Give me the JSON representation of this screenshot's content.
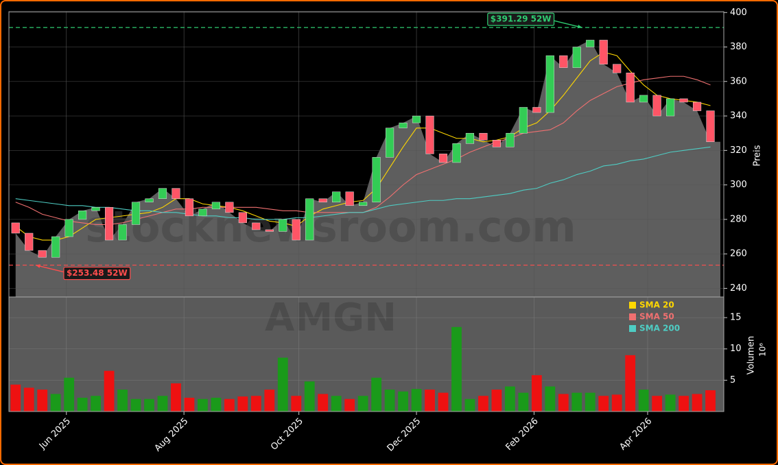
{
  "chart_data": [
    {
      "type": "candlestick",
      "x": [
        0,
        1,
        2,
        3,
        4,
        5,
        6,
        7,
        8,
        9,
        10,
        11,
        12,
        13,
        14,
        15,
        16,
        17,
        18,
        19,
        20,
        21,
        22,
        23,
        24,
        25,
        26,
        27,
        28,
        29,
        30,
        31,
        32,
        33,
        34,
        35,
        36,
        37,
        38,
        39,
        40,
        41,
        42,
        43,
        44,
        45,
        46,
        47,
        48,
        49,
        50,
        51,
        52
      ],
      "open": [
        278,
        272,
        262,
        258,
        270,
        280,
        285,
        287,
        268,
        277,
        290,
        292,
        298,
        292,
        282,
        286,
        290,
        284,
        278,
        274,
        273,
        280,
        268,
        292,
        290,
        296,
        288,
        290,
        316,
        333,
        336,
        340,
        318,
        313,
        324,
        330,
        326,
        322,
        330,
        345,
        342,
        375,
        368,
        380,
        384,
        370,
        365,
        348,
        352,
        340,
        350,
        348,
        343
      ],
      "close": [
        272,
        262,
        258,
        270,
        280,
        285,
        287,
        268,
        277,
        290,
        292,
        298,
        292,
        282,
        286,
        290,
        284,
        278,
        274,
        273,
        280,
        268,
        292,
        290,
        296,
        288,
        290,
        316,
        333,
        336,
        340,
        318,
        313,
        324,
        330,
        326,
        322,
        330,
        345,
        342,
        375,
        368,
        380,
        384,
        370,
        365,
        348,
        352,
        340,
        350,
        348,
        343,
        325
      ],
      "up_color": "#33cc55",
      "down_color": "#ff5566",
      "area_color": "#5e5e5e",
      "series": [
        {
          "name": "SMA 20",
          "color": "#ffd700",
          "values": [
            276,
            270,
            268,
            268,
            270,
            275,
            280,
            281,
            282,
            283,
            284,
            287,
            292,
            292,
            289,
            288,
            287,
            285,
            282,
            279,
            278,
            276,
            282,
            286,
            288,
            290,
            291,
            298,
            310,
            322,
            333,
            333,
            330,
            327,
            327,
            325,
            326,
            328,
            333,
            336,
            343,
            352,
            362,
            372,
            377,
            375,
            366,
            358,
            352,
            350,
            349,
            348,
            346
          ]
        },
        {
          "name": "SMA 50",
          "color": "#f07070",
          "values": [
            290,
            287,
            283,
            281,
            279,
            278,
            277,
            277,
            278,
            280,
            282,
            284,
            286,
            286,
            287,
            287,
            287,
            287,
            287,
            286,
            285,
            285,
            284,
            284,
            284,
            284,
            284,
            287,
            293,
            300,
            306,
            309,
            312,
            315,
            319,
            322,
            325,
            327,
            330,
            331,
            332,
            336,
            343,
            349,
            353,
            357,
            359,
            361,
            362,
            363,
            363,
            361,
            358
          ]
        },
        {
          "name": "SMA 200",
          "color": "#4ecdc4",
          "values": [
            292,
            291,
            290,
            289,
            288,
            288,
            287,
            287,
            286,
            285,
            285,
            284,
            284,
            283,
            282,
            282,
            281,
            281,
            280,
            280,
            280,
            281,
            281,
            282,
            283,
            284,
            284,
            286,
            288,
            289,
            290,
            291,
            291,
            292,
            292,
            293,
            294,
            295,
            297,
            298,
            301,
            303,
            306,
            308,
            311,
            312,
            314,
            315,
            317,
            319,
            320,
            321,
            322
          ]
        }
      ],
      "annotations": [
        {
          "label": "$391.29 52W",
          "value": 391.29,
          "x": 42.4,
          "color": "#2ecc71"
        },
        {
          "label": "$253.48 52W",
          "value": 253.48,
          "x": 1.5,
          "color": "#ff4d4d"
        }
      ],
      "xlim": [
        -0.5,
        53
      ],
      "xticks": [
        {
          "value": 3.8,
          "label": "Jun 2025"
        },
        {
          "value": 12.6,
          "label": "Aug 2025"
        },
        {
          "value": 21.2,
          "label": "Oct 2025"
        },
        {
          "value": 30.0,
          "label": "Dec 2025"
        },
        {
          "value": 38.8,
          "label": "Feb 2026"
        },
        {
          "value": 47.3,
          "label": "Apr 2026"
        }
      ],
      "ylim": [
        235,
        400.5
      ],
      "yticks": [
        240,
        260,
        280,
        300,
        320,
        340,
        360,
        380,
        400
      ],
      "ylabel": "Preis",
      "watermark": "stocknewsroom.com",
      "grid": true
    },
    {
      "type": "bar",
      "values": [
        4.3,
        3.8,
        3.5,
        2.8,
        5.4,
        2.2,
        2.5,
        6.5,
        3.5,
        2,
        2,
        2.5,
        4.5,
        2.2,
        2,
        2.2,
        2,
        2.4,
        2.5,
        3.5,
        8.6,
        2.5,
        4.8,
        2.8,
        2.5,
        2,
        2.5,
        5.4,
        3.5,
        3.2,
        3.6,
        3.5,
        3,
        13.5,
        2,
        2.5,
        3.5,
        4,
        3,
        5.8,
        4,
        2.8,
        3,
        3,
        2.5,
        2.7,
        9,
        3.5,
        2.5,
        2.7,
        2.5,
        2.8,
        3.4
      ],
      "up_color": "#1a9a1a",
      "down_color": "#ee1111",
      "ylim": [
        0,
        18.3
      ],
      "yticks": [
        5,
        10,
        15
      ],
      "ylabel": "Volumen",
      "multiplier": "10⁶",
      "watermark": "AMGN",
      "grid": true
    }
  ]
}
